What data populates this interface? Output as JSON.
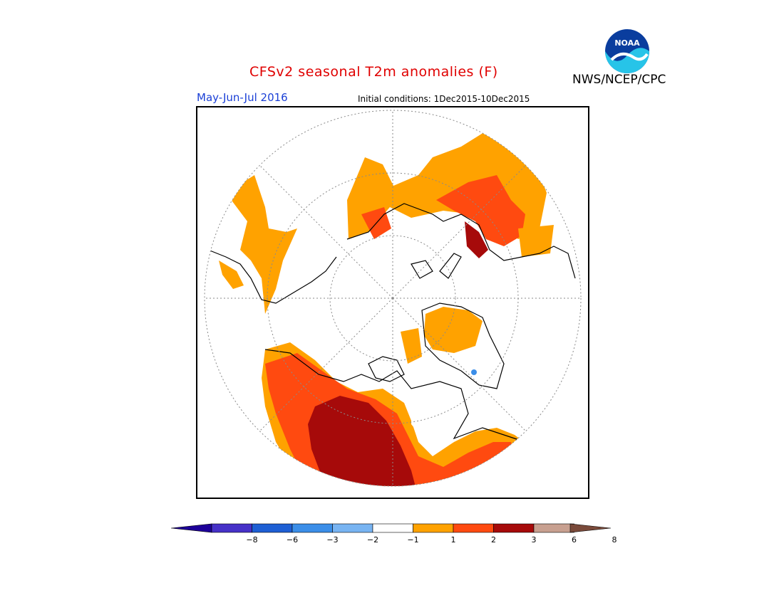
{
  "header": {
    "title": "CFSv2 seasonal T2m anomalies (F)",
    "agency": "NWS/NCEP/CPC",
    "logo_text": "NOAA"
  },
  "map": {
    "season": "May-Jun-Jul 2016",
    "initial_conditions": "Initial conditions: 1Dec2015-10Dec2015",
    "projection": "north-polar-stereographic"
  },
  "legend": {
    "colors": [
      "#1d0099",
      "#4631c8",
      "#1e5fd4",
      "#3b8ee8",
      "#78b4f2",
      "#ffffff",
      "#ffa200",
      "#ff4a10",
      "#a60a0a",
      "#c8a090",
      "#7a4a3a"
    ],
    "ticks": [
      "−8",
      "−6",
      "−3",
      "−2",
      "−1",
      "1",
      "2",
      "3",
      "6",
      "8"
    ]
  }
}
